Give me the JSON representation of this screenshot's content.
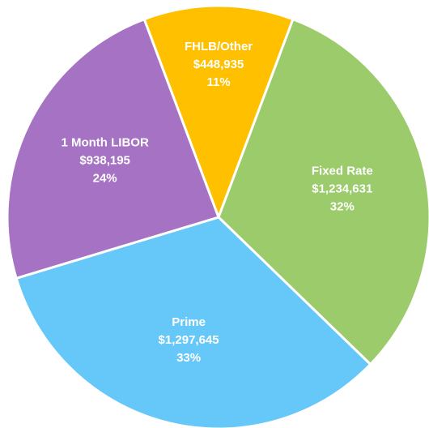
{
  "chart_data": {
    "type": "pie",
    "categories": [
      "FHLB/Other",
      "Fixed Rate",
      "Prime",
      "1 Month LIBOR"
    ],
    "values": [
      448935,
      1234631,
      1297645,
      938195
    ],
    "value_labels": [
      "$448,935",
      "$1,234,631",
      "$1,297,645",
      "$938,195"
    ],
    "shares": [
      11,
      32,
      33,
      24
    ],
    "share_labels": [
      "11%",
      "32%",
      "33%",
      "24%"
    ],
    "colors": [
      "#ffc000",
      "#9bcb6a",
      "#66c8f8",
      "#a673c4"
    ]
  }
}
